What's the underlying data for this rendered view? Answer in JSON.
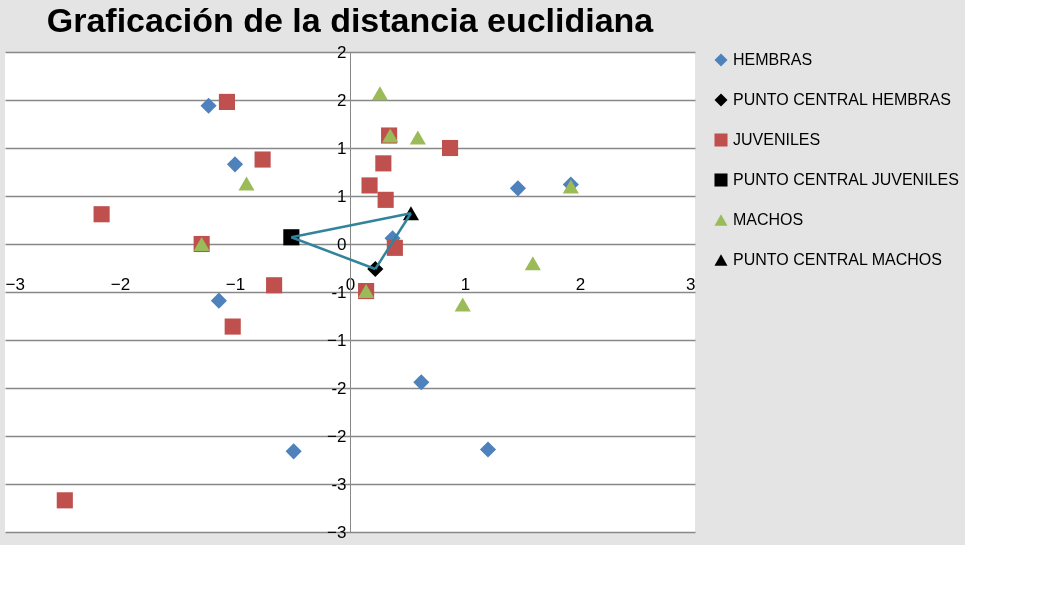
{
  "chart_data": {
    "type": "scatter",
    "title": "Graficación de la distancia euclidiana",
    "xlim": [
      -3,
      3
    ],
    "xticks": [
      -3,
      -2,
      -1,
      0,
      1,
      2,
      3
    ],
    "ylim": [
      -3,
      2
    ],
    "yticks": [
      2,
      {
        "value": 1.5,
        "label": "2"
      },
      1,
      {
        "value": 0.5,
        "label": "1"
      },
      0,
      {
        "value": -0.5,
        "label": "-1"
      },
      -1,
      {
        "value": -1.5,
        "label": "-2"
      },
      -2,
      {
        "value": -2.5,
        "label": "-3"
      },
      -3
    ],
    "grid": "y",
    "legend": "right",
    "series": [
      {
        "name": "HEMBRAS",
        "color": "#4f81bd",
        "marker": "diamond",
        "x": [
          -1.23,
          -1.0,
          -1.14,
          -0.49,
          0.62,
          1.2,
          1.46,
          1.92,
          0.37
        ],
        "values": [
          1.44,
          0.83,
          -0.59,
          -2.16,
          -1.44,
          -2.14,
          0.58,
          0.62,
          0.06
        ]
      },
      {
        "name": "PUNTO CENTRAL HEMBRAS",
        "color": "#000000",
        "marker": "diamond",
        "x": [
          0.22
        ],
        "values": [
          -0.26
        ]
      },
      {
        "name": "JUVENILES",
        "color": "#c0504d",
        "marker": "square",
        "x": [
          -1.07,
          -0.76,
          -2.16,
          -1.29,
          -0.66,
          -1.02,
          -2.48,
          0.34,
          0.29,
          0.17,
          0.31,
          0.39,
          0.87,
          0.14
        ],
        "values": [
          1.48,
          0.88,
          0.31,
          0.0,
          -0.43,
          -0.86,
          -2.67,
          1.13,
          0.84,
          0.61,
          0.46,
          -0.04,
          1.0,
          -0.49
        ]
      },
      {
        "name": "PUNTO CENTRAL JUVENILES",
        "color": "#000000",
        "marker": "square",
        "x": [
          -0.51
        ],
        "values": [
          0.07
        ]
      },
      {
        "name": "MACHOS",
        "color": "#9bbb59",
        "marker": "triangle",
        "x": [
          0.26,
          0.35,
          0.59,
          -0.9,
          -1.29,
          1.92,
          1.59,
          0.98,
          0.14
        ],
        "values": [
          1.57,
          1.13,
          1.11,
          0.63,
          0.0,
          0.6,
          -0.2,
          -0.63,
          -0.49
        ]
      },
      {
        "name": "PUNTO CENTRAL MACHOS",
        "color": "#000000",
        "marker": "triangle",
        "x": [
          0.53
        ],
        "values": [
          0.32
        ]
      },
      {
        "type": "line",
        "color": "#31849b",
        "marker": "none",
        "x": [
          -0.51,
          0.53
        ],
        "values": [
          0.07,
          0.32
        ]
      },
      {
        "type": "line",
        "color": "#31849b",
        "marker": "none",
        "x": [
          0.22,
          0.53
        ],
        "values": [
          -0.26,
          0.32
        ]
      },
      {
        "type": "line",
        "color": "#31849b",
        "marker": "none",
        "x": [
          -0.51,
          0.22
        ],
        "values": [
          0.07,
          -0.26
        ]
      }
    ]
  }
}
